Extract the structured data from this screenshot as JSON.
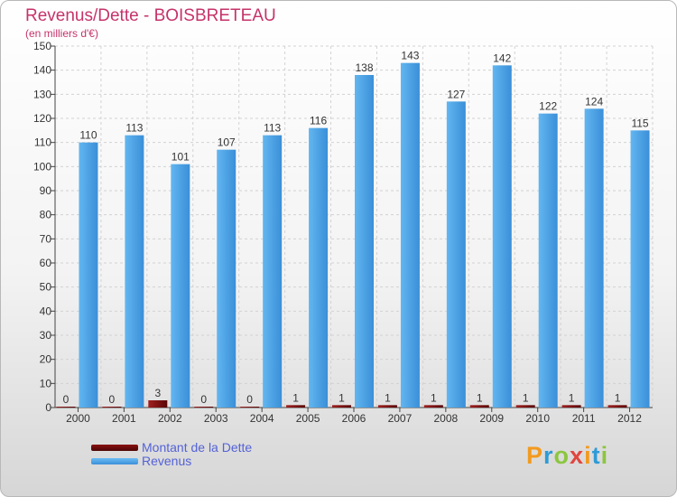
{
  "chart_data": {
    "type": "bar",
    "title": "Revenus/Dette - BOISBRETEAU",
    "subtitle": "(en milliers d'€)",
    "categories": [
      "2000",
      "2001",
      "2002",
      "2003",
      "2004",
      "2005",
      "2006",
      "2007",
      "2008",
      "2009",
      "2010",
      "2011",
      "2012"
    ],
    "series": [
      {
        "name": "Montant de la Dette",
        "values": [
          0,
          0,
          3,
          0,
          0,
          1,
          1,
          1,
          1,
          1,
          1,
          1,
          1
        ]
      },
      {
        "name": "Revenus",
        "values": [
          110,
          113,
          101,
          107,
          113,
          116,
          138,
          143,
          127,
          142,
          122,
          124,
          115
        ]
      }
    ],
    "ylim": [
      0,
      150
    ],
    "yticks": [
      0,
      10,
      20,
      30,
      40,
      50,
      60,
      70,
      80,
      90,
      100,
      110,
      120,
      130,
      140,
      150
    ],
    "grid": true,
    "legend_position": "bottom-left",
    "colors": {
      "dette": "#6b0a0a",
      "revenus": "#4aa3e8",
      "title": "#c6336a",
      "legend_text": "#5462d6"
    }
  },
  "logo": {
    "letters": [
      "P",
      "r",
      "o",
      "x",
      "i",
      "t",
      "i"
    ]
  }
}
